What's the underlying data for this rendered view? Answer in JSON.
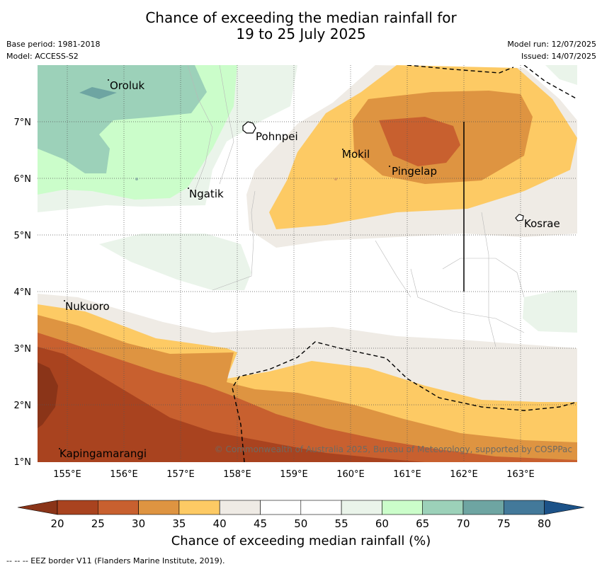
{
  "title_line1": "Chance of exceeding the median rainfall for",
  "title_line2": "19 to 25 July 2025",
  "meta_left": [
    "Base period: 1981-2018",
    "Model: ACCESS-S2"
  ],
  "meta_right": [
    "Model run: 12/07/2025",
    "Issued: 14/07/2025"
  ],
  "places": [
    {
      "name": "Oroluk"
    },
    {
      "name": "Pohnpei"
    },
    {
      "name": "Mokil"
    },
    {
      "name": "Pingelap"
    },
    {
      "name": "Ngatik"
    },
    {
      "name": "Kosrae"
    },
    {
      "name": "Nukuoro"
    },
    {
      "name": "Kapingamarangi"
    }
  ],
  "lat_ticks": [
    "7°N",
    "6°N",
    "5°N",
    "4°N",
    "3°N",
    "2°N",
    "1°N"
  ],
  "lon_ticks": [
    "155°E",
    "156°E",
    "157°E",
    "158°E",
    "159°E",
    "160°E",
    "161°E",
    "162°E",
    "163°E"
  ],
  "copyright": "© Commonwealth of Australia 2025, Bureau of Meteorology, supported by COSPPac",
  "colorbar": {
    "label": "Chance of exceeding median rainfall (%)",
    "ticks": [
      "20",
      "25",
      "30",
      "35",
      "40",
      "45",
      "50",
      "55",
      "60",
      "65",
      "70",
      "75",
      "80"
    ],
    "colors": [
      "#a9431f",
      "#c8602f",
      "#de9441",
      "#fdca64",
      "#efebe5",
      "#ffffff",
      "#ffffff",
      "#eaf4ea",
      "#cbfdca",
      "#9cd1b9",
      "#6ea5a2",
      "#43799a"
    ],
    "under_color": "#8a3418",
    "over_color": "#1c5288"
  },
  "eez_note": "-- -- -- EEZ border V11 (Flanders Marine Institute, 2019)."
}
